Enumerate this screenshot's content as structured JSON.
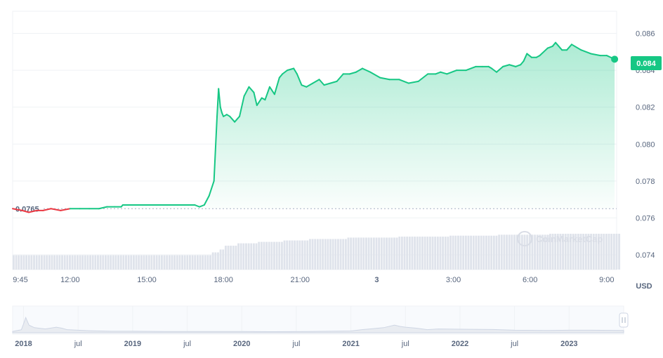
{
  "chart_data": {
    "type": "area",
    "unit_label": "USD",
    "baseline": {
      "value": 0.0765,
      "label": "0.0765"
    },
    "current_price": {
      "value": 0.0844,
      "label": "0.084"
    },
    "y_ticks": [
      "0.086",
      "0.084",
      "0.082",
      "0.080",
      "0.078",
      "0.076",
      "0.074"
    ],
    "y_tick_values": [
      0.086,
      0.084,
      0.082,
      0.08,
      0.078,
      0.076,
      0.074
    ],
    "x_ticks": [
      "9:45",
      "12:00",
      "15:00",
      "18:00",
      "21:00",
      "3",
      "3:00",
      "6:00",
      "9:00"
    ],
    "x_tick_hours": [
      0,
      2.25,
      5.25,
      8.25,
      11.25,
      14.25,
      17.25,
      20.25,
      23.25
    ],
    "x_range_hours": [
      0,
      23.75
    ],
    "y_range": [
      0.0732,
      0.0872
    ],
    "colors": {
      "up": "#16c784",
      "down": "#ea3943",
      "volume": "#dfe3eb",
      "navigator": "#e9ecf1"
    },
    "series": [
      {
        "x": [
          0.0,
          0.38,
          0.63,
          0.94,
          1.19,
          1.5,
          1.88,
          2.25,
          2.63,
          3.0,
          3.38,
          3.69,
          4.0,
          4.25,
          4.31,
          4.63,
          4.94,
          5.25,
          5.63,
          6.0,
          6.38,
          6.75,
          7.13,
          7.31,
          7.5,
          7.69,
          7.88,
          8.0,
          8.06,
          8.13,
          8.19,
          8.25,
          8.38,
          8.5,
          8.69,
          8.88,
          9.06,
          9.25,
          9.44,
          9.56,
          9.75,
          9.88,
          10.06,
          10.25,
          10.44,
          10.56,
          10.75,
          11.0,
          11.13,
          11.31,
          11.5,
          11.75,
          12.0,
          12.19,
          12.44,
          12.69,
          12.94,
          13.19,
          13.44,
          13.69,
          14.0,
          14.38,
          14.75,
          15.13,
          15.5,
          15.88,
          16.25,
          16.56,
          16.75,
          17.0,
          17.38,
          17.75,
          18.13,
          18.38,
          18.63,
          18.75,
          18.94,
          19.19,
          19.44,
          19.69,
          19.88,
          20.0,
          20.13,
          20.31,
          20.5,
          20.63,
          20.94,
          21.13,
          21.25,
          21.5,
          21.69,
          21.88,
          22.25,
          22.63,
          23.0,
          23.25,
          23.56
        ],
        "y": [
          0.0765,
          0.0764,
          0.0763,
          0.0764,
          0.0764,
          0.0765,
          0.0764,
          0.0765,
          0.0765,
          0.0765,
          0.0765,
          0.0766,
          0.0766,
          0.0766,
          0.0767,
          0.0767,
          0.0767,
          0.0767,
          0.0767,
          0.0767,
          0.0767,
          0.0767,
          0.0767,
          0.0766,
          0.0767,
          0.0772,
          0.078,
          0.0815,
          0.083,
          0.082,
          0.0817,
          0.0815,
          0.0816,
          0.0815,
          0.0812,
          0.0815,
          0.0826,
          0.0831,
          0.0828,
          0.0821,
          0.0825,
          0.0824,
          0.0831,
          0.0827,
          0.0836,
          0.0838,
          0.084,
          0.0841,
          0.0838,
          0.0832,
          0.0831,
          0.0833,
          0.0835,
          0.0832,
          0.0833,
          0.0834,
          0.0838,
          0.0838,
          0.0839,
          0.0841,
          0.0839,
          0.0836,
          0.0835,
          0.0835,
          0.0833,
          0.0834,
          0.0838,
          0.0838,
          0.0839,
          0.0838,
          0.084,
          0.084,
          0.0842,
          0.0842,
          0.0842,
          0.0841,
          0.0839,
          0.0842,
          0.0843,
          0.0842,
          0.0843,
          0.0845,
          0.0849,
          0.0847,
          0.0847,
          0.0848,
          0.0852,
          0.0853,
          0.0855,
          0.0851,
          0.0851,
          0.0854,
          0.0851,
          0.0849,
          0.0848,
          0.0848,
          0.0846
        ]
      }
    ],
    "volume_levels": [
      {
        "from": 0.0,
        "to": 7.75,
        "level": 0.3
      },
      {
        "from": 7.75,
        "to": 8.0,
        "level": 0.36
      },
      {
        "from": 8.0,
        "to": 8.25,
        "level": 0.42
      },
      {
        "from": 8.25,
        "to": 8.75,
        "level": 0.5
      },
      {
        "from": 8.75,
        "to": 9.5,
        "level": 0.55
      },
      {
        "from": 9.5,
        "to": 10.5,
        "level": 0.58
      },
      {
        "from": 10.5,
        "to": 11.5,
        "level": 0.61
      },
      {
        "from": 11.5,
        "to": 13.0,
        "level": 0.64
      },
      {
        "from": 13.0,
        "to": 15.0,
        "level": 0.67
      },
      {
        "from": 15.0,
        "to": 17.0,
        "level": 0.69
      },
      {
        "from": 17.0,
        "to": 19.0,
        "level": 0.71
      },
      {
        "from": 19.0,
        "to": 21.0,
        "level": 0.73
      },
      {
        "from": 21.0,
        "to": 23.75,
        "level": 0.75
      }
    ],
    "navigator": {
      "labels": [
        "2018",
        "jul",
        "2019",
        "jul",
        "2020",
        "jul",
        "2021",
        "jul",
        "2022",
        "jul",
        "2023"
      ],
      "major": [
        true,
        false,
        true,
        false,
        true,
        false,
        true,
        false,
        true,
        false,
        true
      ],
      "years": [
        2018.0,
        2018.5,
        2019.0,
        2019.5,
        2020.0,
        2020.5,
        2021.0,
        2021.5,
        2022.0,
        2022.5,
        2023.0
      ],
      "range_years": [
        2017.9,
        2023.5
      ],
      "x": [
        2017.9,
        2017.98,
        2018.0,
        2018.02,
        2018.05,
        2018.1,
        2018.2,
        2018.3,
        2018.35,
        2018.4,
        2018.5,
        2018.6,
        2018.8,
        2019.0,
        2019.3,
        2019.6,
        2020.0,
        2020.3,
        2020.6,
        2021.0,
        2021.1,
        2021.2,
        2021.3,
        2021.4,
        2021.45,
        2021.5,
        2021.6,
        2021.7,
        2021.8,
        2022.0,
        2022.3,
        2022.5,
        2022.8,
        2023.0,
        2023.2,
        2023.5
      ],
      "y": [
        0.05,
        0.12,
        0.35,
        0.6,
        0.3,
        0.2,
        0.15,
        0.22,
        0.18,
        0.12,
        0.1,
        0.08,
        0.06,
        0.06,
        0.05,
        0.05,
        0.05,
        0.04,
        0.05,
        0.07,
        0.12,
        0.16,
        0.2,
        0.3,
        0.25,
        0.22,
        0.18,
        0.12,
        0.15,
        0.14,
        0.13,
        0.1,
        0.09,
        0.1,
        0.1,
        0.09
      ]
    }
  }
}
